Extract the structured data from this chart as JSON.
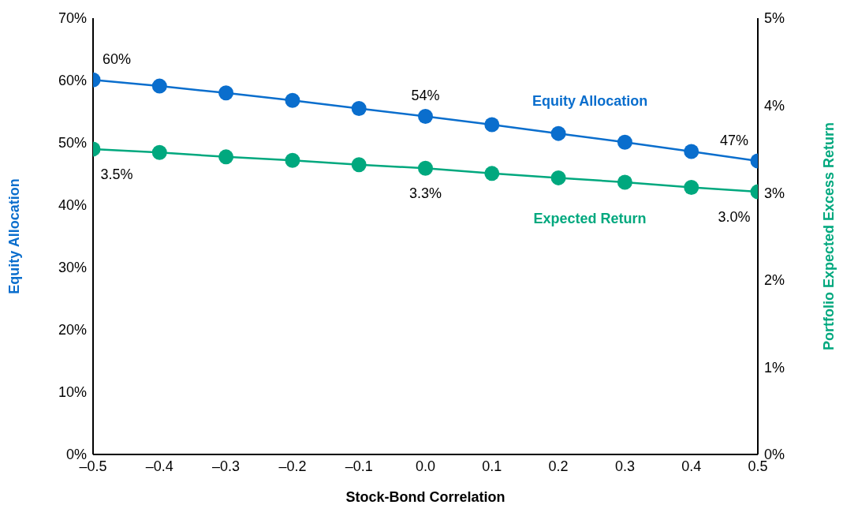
{
  "chart_data": {
    "type": "line",
    "xlabel": "Stock-Bond Correlation",
    "ylabel": "Equity Allocation",
    "y2label": "Portfolio Expected Excess Return",
    "x": [
      -0.5,
      -0.4,
      -0.3,
      -0.2,
      -0.1,
      0,
      0.1,
      0.2,
      0.3,
      0.4,
      0.5
    ],
    "series": [
      {
        "name": "Equity Allocation",
        "color": "#0a6ecd",
        "values": [
          60.1,
          59.1,
          58.0,
          56.8,
          55.5,
          54.25,
          52.9,
          51.5,
          50.1,
          48.6,
          47.1
        ],
        "value_labels": [
          "60%",
          null,
          null,
          null,
          null,
          "54%",
          null,
          null,
          null,
          null,
          "47%"
        ]
      },
      {
        "name": "Expected Return",
        "color": "#00a87e",
        "axis": "y2",
        "values": [
          3.5,
          3.46,
          3.41,
          3.37,
          3.32,
          3.28,
          3.22,
          3.17,
          3.12,
          3.06,
          3.01
        ],
        "value_labels": [
          "3.5%",
          null,
          null,
          null,
          null,
          "3.3%",
          null,
          null,
          null,
          null,
          "3.0%"
        ]
      }
    ],
    "xlim": [
      -0.5,
      0.5
    ],
    "xticks": [
      {
        "value": -0.5,
        "label": "–0.5"
      },
      {
        "value": -0.4,
        "label": "–0.4"
      },
      {
        "value": -0.3,
        "label": "–0.3"
      },
      {
        "value": -0.2,
        "label": "–0.2"
      },
      {
        "value": -0.1,
        "label": "–0.1"
      },
      {
        "value": 0,
        "label": "0.0"
      },
      {
        "value": 0.1,
        "label": "0.1"
      },
      {
        "value": 0.2,
        "label": "0.2"
      },
      {
        "value": 0.3,
        "label": "0.3"
      },
      {
        "value": 0.4,
        "label": "0.4"
      },
      {
        "value": 0.5,
        "label": "0.5"
      }
    ],
    "ylim": [
      0,
      70
    ],
    "yticks": [
      {
        "value": 0,
        "label": "0%"
      },
      {
        "value": 10,
        "label": "10%"
      },
      {
        "value": 20,
        "label": "20%"
      },
      {
        "value": 30,
        "label": "30%"
      },
      {
        "value": 40,
        "label": "40%"
      },
      {
        "value": 50,
        "label": "50%"
      },
      {
        "value": 60,
        "label": "60%"
      },
      {
        "value": 70,
        "label": "70%"
      }
    ],
    "y2lim": [
      0,
      5
    ],
    "y2ticks": [
      {
        "value": 0,
        "label": "0%"
      },
      {
        "value": 1,
        "label": "1%"
      },
      {
        "value": 2,
        "label": "2%"
      },
      {
        "value": 3,
        "label": "3%"
      },
      {
        "value": 4,
        "label": "4%"
      },
      {
        "value": 5,
        "label": "5%"
      }
    ],
    "marker": "circle"
  }
}
